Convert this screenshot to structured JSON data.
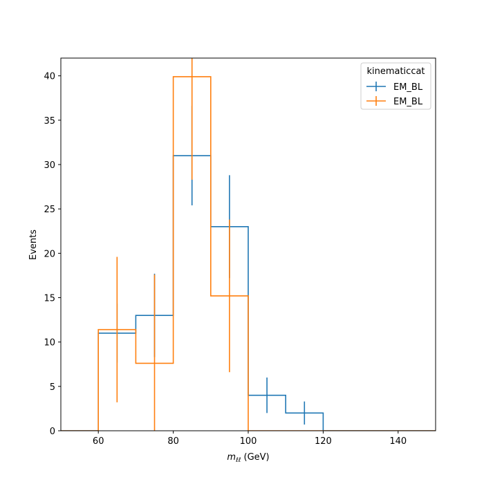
{
  "chart_data": {
    "type": "histogram",
    "title": "",
    "xlabel": "(GeV)",
    "xlabel_math": "m",
    "xlabel_sub": "ℓℓ",
    "ylabel": "Events",
    "xlim": [
      50,
      150
    ],
    "ylim": [
      0,
      42
    ],
    "xticks": [
      60,
      80,
      100,
      120,
      140
    ],
    "yticks": [
      0,
      5,
      10,
      15,
      20,
      25,
      30,
      35,
      40
    ],
    "grid": false,
    "legend": {
      "title": "kinematiccat",
      "placement": "top-right"
    },
    "bin_edges": [
      50,
      60,
      70,
      80,
      90,
      100,
      110,
      120,
      130,
      140,
      150
    ],
    "series": [
      {
        "name": "EM_BL",
        "color": "#1f77b4",
        "values": [
          0,
          11,
          13,
          31,
          23,
          4,
          2,
          0,
          0,
          0
        ],
        "errors": [
          0,
          3.32,
          4.7,
          5.6,
          5.8,
          2.0,
          1.3,
          0,
          0,
          0
        ]
      },
      {
        "name": "EM_BL",
        "color": "#ff7f0e",
        "values": [
          0,
          11.4,
          7.6,
          39.9,
          15.2,
          0,
          0,
          0,
          0,
          0
        ],
        "errors": [
          0,
          8.2,
          10.0,
          11.6,
          8.6,
          0,
          0,
          0,
          0,
          0
        ]
      }
    ]
  }
}
